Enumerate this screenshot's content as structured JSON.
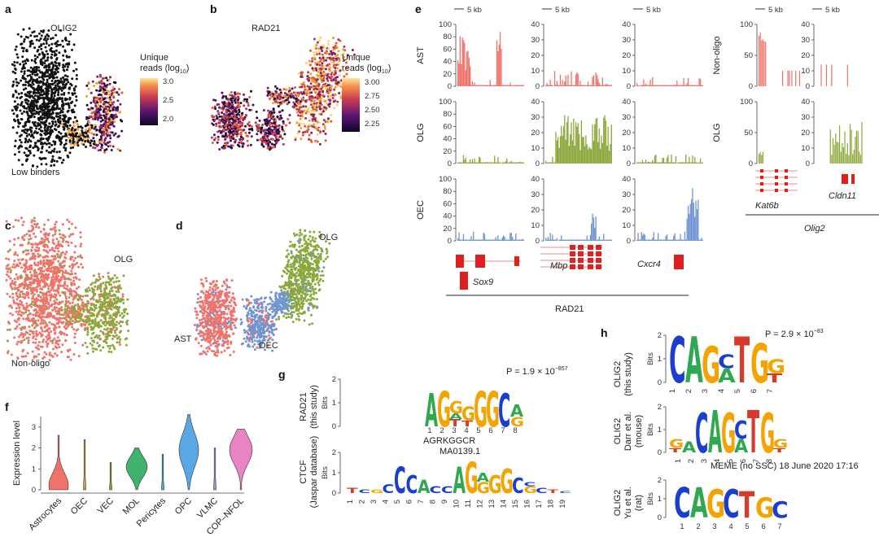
{
  "panels": {
    "a": "a",
    "b": "b",
    "c": "c",
    "d": "d",
    "e": "e",
    "f": "f",
    "g": "g",
    "h": "h"
  },
  "panel_a": {
    "title": "OLIG2",
    "low_binders": "Low binders",
    "legend_title_1": "Unique",
    "legend_title_2": "reads (log",
    "legend_sub": "10",
    "legend_close": ")",
    "ticks": [
      "3.0",
      "2.5",
      "2.0"
    ]
  },
  "panel_b": {
    "title": "RAD21",
    "legend_title_1": "Unique",
    "legend_title_2": "reads (log",
    "legend_sub": "10",
    "legend_close": ")",
    "ticks": [
      "3.00",
      "2.75",
      "2.50",
      "2.25"
    ]
  },
  "panel_c": {
    "olg": "OLG",
    "non_oligo": "Non-oligo"
  },
  "panel_d": {
    "olg": "OLG",
    "ast": "AST",
    "oec": "OEC"
  },
  "panel_e": {
    "scale_label": "5 kb",
    "row_labels": [
      "AST",
      "OLG",
      "OEC"
    ],
    "row_labels_right": [
      "Non-oligo",
      "OLG"
    ],
    "genes": [
      "Sox9",
      "Mbp",
      "Cxcr4",
      "Kat6b",
      "Cldn11"
    ],
    "group_label": "RAD21",
    "group_label_right": "Olig2",
    "yticks_100": [
      "100",
      "80",
      "60",
      "40",
      "20",
      "0"
    ],
    "yticks_40": [
      "40",
      "30",
      "20",
      "10",
      "0"
    ],
    "yticks_100_right": [
      "100",
      "50",
      "0"
    ],
    "yticks_40_right": [
      "40",
      "30",
      "20",
      "10",
      "0"
    ]
  },
  "panel_f": {
    "ylabel": "Expression level",
    "yticks": [
      "3",
      "2",
      "1",
      "0"
    ],
    "categories": [
      "Astrocytes",
      "OEC",
      "VEC",
      "MOL",
      "Pericytes",
      "OPC",
      "VLMC",
      "COP–NFOL"
    ]
  },
  "panel_g": {
    "rad21_label_1": "RAD21",
    "rad21_label_2": "(this study)",
    "ctcf_label_1": "CTCF",
    "ctcf_label_2": "(Jaspar database)",
    "bits": "Bits",
    "pvalue_prefix": "P = 1.9 × 10",
    "pvalue_exp": "−857",
    "consensus": "AGRKGGCR",
    "jaspar_id": "MA0139.1",
    "rad21_positions": [
      "1",
      "2",
      "3",
      "4",
      "5",
      "6",
      "7",
      "8"
    ],
    "ctcf_positions": [
      "1",
      "2",
      "3",
      "4",
      "5",
      "6",
      "7",
      "8",
      "9",
      "10",
      "11",
      "12",
      "13",
      "14",
      "15",
      "16",
      "17",
      "18",
      "19"
    ],
    "yticks": [
      "2",
      "1",
      "0"
    ]
  },
  "panel_h": {
    "row1_1": "OLIG2",
    "row1_2": "(this study)",
    "row2_1": "OLIG2",
    "row2_2": "Darr et al.",
    "row2_3": "(mouse)",
    "row3_1": "OLIG2",
    "row3_2": "Yu et al.",
    "row3_3": "(rat)",
    "bits": "Bits",
    "pvalue_prefix": "P = 2.9 × 10",
    "pvalue_exp": "−83",
    "meme": "MEME (no SSC) 18 June 2020 17:16",
    "positions": [
      "1",
      "2",
      "3",
      "4",
      "5",
      "6",
      "7"
    ],
    "positions_darr": [
      "1",
      "2",
      "3",
      "4",
      "5",
      "6",
      "7",
      "8"
    ],
    "yticks": [
      "2",
      "1",
      "0"
    ]
  },
  "colors": {
    "ast": "#f0736b",
    "olg": "#8ba83a",
    "oec": "#6f95d4",
    "dark": "#111111",
    "A": "#2fa84f",
    "C": "#1a3fd0",
    "G": "#f4a300",
    "T": "#d63a2a"
  }
}
